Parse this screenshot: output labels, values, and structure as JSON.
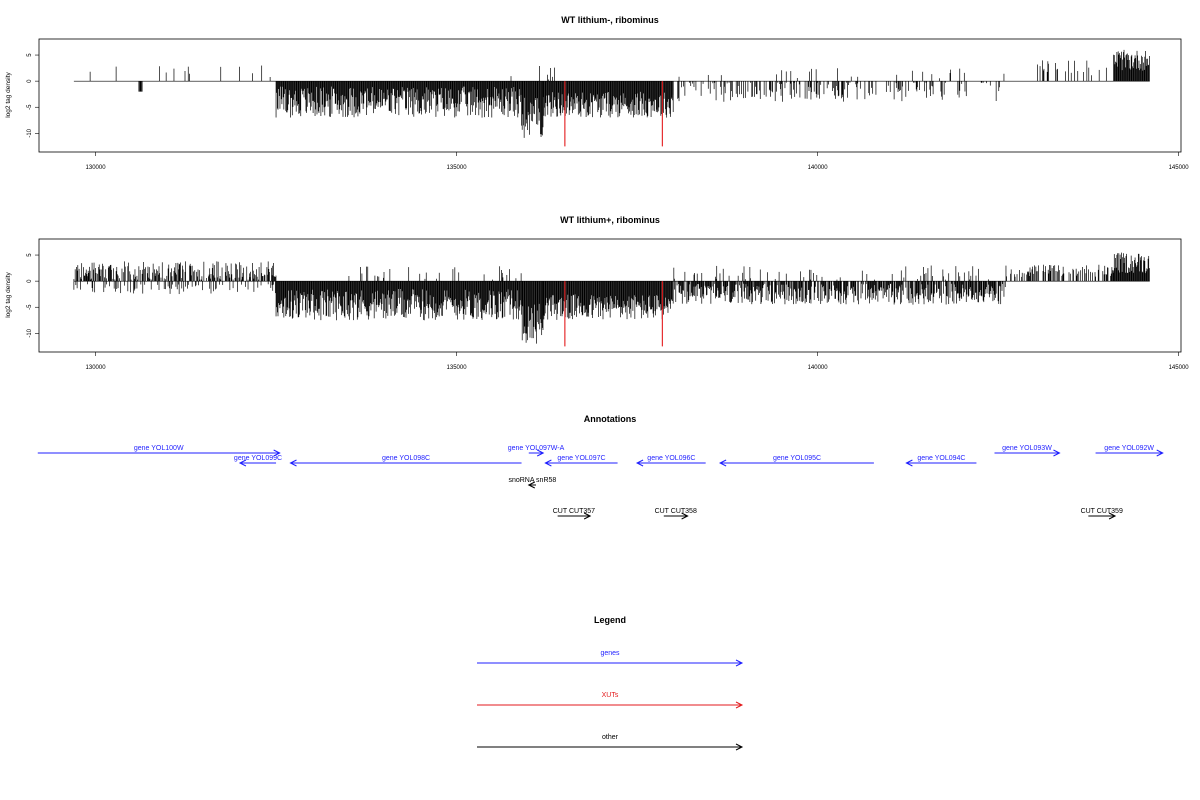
{
  "chart_data": [
    {
      "type": "bar",
      "title": "WT lithium-, ribominus",
      "xlabel": "",
      "ylabel": "log2 tag density",
      "xlim": [
        129300,
        144950
      ],
      "ylim": [
        -13,
        7.5
      ],
      "xticks": [
        130000,
        135000,
        140000,
        145000
      ],
      "yticks": [
        5,
        0,
        -5,
        -10
      ],
      "bar_color": "#000000",
      "marker_color": "#e31a1c",
      "markers": [
        {
          "x": 136500,
          "y": -12.5
        },
        {
          "x": 137850,
          "y": -12.5
        }
      ],
      "segments": [
        {
          "start": 129700,
          "end": 132500,
          "dens": 0.05,
          "base": 1.8,
          "spread": 1.2,
          "pos": true
        },
        {
          "start": 130600,
          "end": 130650,
          "dens": 1.0,
          "base": -2.0,
          "spread": 0,
          "pos": false
        },
        {
          "start": 132500,
          "end": 135900,
          "dens": 1.0,
          "base": -4.0,
          "spread": 3.0,
          "pos": false
        },
        {
          "start": 135700,
          "end": 136500,
          "dens": 0.1,
          "base": 2.0,
          "spread": 2.0,
          "pos": true
        },
        {
          "start": 135900,
          "end": 136200,
          "dens": 1.0,
          "base": -7.0,
          "spread": 4.0,
          "pos": false
        },
        {
          "start": 136200,
          "end": 138000,
          "dens": 1.0,
          "base": -4.5,
          "spread": 2.5,
          "pos": false
        },
        {
          "start": 138000,
          "end": 142600,
          "dens": 0.35,
          "base": -2.0,
          "spread": 2.0,
          "pos": false
        },
        {
          "start": 138000,
          "end": 142600,
          "dens": 0.04,
          "base": 1.5,
          "spread": 1.0,
          "pos": true
        },
        {
          "start": 143000,
          "end": 144100,
          "dens": 0.15,
          "base": 2.5,
          "spread": 1.5,
          "pos": true
        },
        {
          "start": 144100,
          "end": 144600,
          "dens": 1.0,
          "base": 4.0,
          "spread": 2.0,
          "pos": true
        }
      ]
    },
    {
      "type": "bar",
      "title": "WT lithium+, ribominus",
      "xlabel": "",
      "ylabel": "log2 tag density",
      "xlim": [
        129300,
        144950
      ],
      "ylim": [
        -13,
        7.5
      ],
      "xticks": [
        130000,
        135000,
        140000,
        145000
      ],
      "yticks": [
        5,
        0,
        -5,
        -10
      ],
      "bar_color": "#000000",
      "marker_color": "#e31a1c",
      "markers": [
        {
          "x": 136500,
          "y": -12.5
        },
        {
          "x": 137850,
          "y": -12.5
        }
      ],
      "segments": [
        {
          "start": 129700,
          "end": 132500,
          "dens": 0.7,
          "base": 2.0,
          "spread": 1.8,
          "pos": true
        },
        {
          "start": 129700,
          "end": 132500,
          "dens": 0.2,
          "base": -1.5,
          "spread": 1.0,
          "pos": false
        },
        {
          "start": 132500,
          "end": 135900,
          "dens": 1.0,
          "base": -4.5,
          "spread": 3.0,
          "pos": false
        },
        {
          "start": 133500,
          "end": 135900,
          "dens": 0.1,
          "base": 1.5,
          "spread": 1.5,
          "pos": true
        },
        {
          "start": 135900,
          "end": 136200,
          "dens": 1.0,
          "base": -8.0,
          "spread": 4.0,
          "pos": false
        },
        {
          "start": 136200,
          "end": 138000,
          "dens": 1.0,
          "base": -5.0,
          "spread": 2.5,
          "pos": false
        },
        {
          "start": 138000,
          "end": 142600,
          "dens": 0.85,
          "base": -2.5,
          "spread": 2.0,
          "pos": false
        },
        {
          "start": 138000,
          "end": 142600,
          "dens": 0.1,
          "base": 1.5,
          "spread": 1.5,
          "pos": true
        },
        {
          "start": 142600,
          "end": 144100,
          "dens": 0.5,
          "base": 2.0,
          "spread": 1.2,
          "pos": true
        },
        {
          "start": 144100,
          "end": 144600,
          "dens": 1.0,
          "base": 3.5,
          "spread": 2.0,
          "pos": true
        }
      ]
    }
  ],
  "annotations": {
    "title": "Annotations",
    "xlim": [
      129300,
      144950
    ],
    "features": [
      {
        "label": "gene YOL100W",
        "kind": "gene",
        "start": 129200,
        "end": 132550,
        "strand": "+",
        "row": 0
      },
      {
        "label": "gene YOL099C",
        "kind": "gene",
        "start": 132000,
        "end": 132500,
        "strand": "-",
        "row": 1
      },
      {
        "label": "gene YOL098C",
        "kind": "gene",
        "start": 132700,
        "end": 135900,
        "strand": "-",
        "row": 1
      },
      {
        "label": "gene YOL097W-A",
        "kind": "gene",
        "start": 136000,
        "end": 136200,
        "strand": "+",
        "row": 0
      },
      {
        "label": "gene YOL097C",
        "kind": "gene",
        "start": 136230,
        "end": 137230,
        "strand": "-",
        "row": 1
      },
      {
        "label": "gene YOL096C",
        "kind": "gene",
        "start": 137500,
        "end": 138450,
        "strand": "-",
        "row": 1
      },
      {
        "label": "gene YOL095C",
        "kind": "gene",
        "start": 138650,
        "end": 140780,
        "strand": "-",
        "row": 1
      },
      {
        "label": "gene YOL094C",
        "kind": "gene",
        "start": 141230,
        "end": 142200,
        "strand": "-",
        "row": 1
      },
      {
        "label": "gene YOL093W",
        "kind": "gene",
        "start": 142450,
        "end": 143350,
        "strand": "+",
        "row": 0
      },
      {
        "label": "gene YOL092W",
        "kind": "gene",
        "start": 143850,
        "end": 144780,
        "strand": "+",
        "row": 0
      },
      {
        "label": "snoRNA snR58",
        "kind": "other",
        "start": 136000,
        "end": 136100,
        "strand": "-",
        "row": 2
      },
      {
        "label": "CUT CUT357",
        "kind": "other",
        "start": 136400,
        "end": 136850,
        "strand": "+",
        "row": 3
      },
      {
        "label": "CUT CUT358",
        "kind": "other",
        "start": 137870,
        "end": 138200,
        "strand": "+",
        "row": 3
      },
      {
        "label": "CUT CUT359",
        "kind": "other",
        "start": 143750,
        "end": 144120,
        "strand": "+",
        "row": 3
      }
    ]
  },
  "legend": {
    "title": "Legend",
    "items": [
      {
        "label": "genes",
        "color": "#1f1fff"
      },
      {
        "label": "XUTs",
        "color": "#e31a1c"
      },
      {
        "label": "other",
        "color": "#000000"
      }
    ]
  }
}
